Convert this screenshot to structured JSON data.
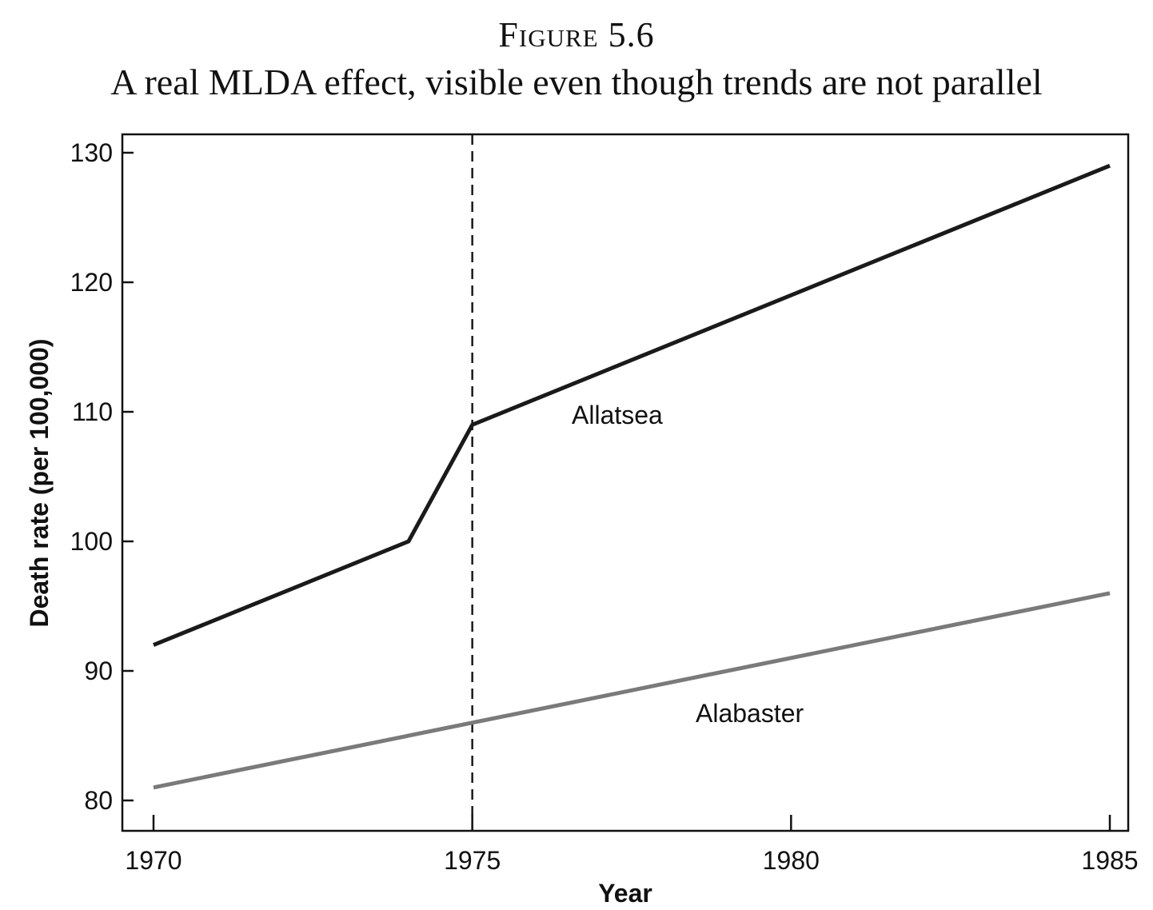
{
  "figure": {
    "number": "Figure 5.6",
    "caption": "A real MLDA effect, visible even though trends are not parallel"
  },
  "chart_data": {
    "type": "line",
    "title": "A real MLDA effect, visible even though trends are not parallel",
    "xlabel": "Year",
    "ylabel": "Death rate (per 100,000)",
    "xlim": [
      1970,
      1985
    ],
    "ylim": [
      80,
      130
    ],
    "x_ticks": [
      1970,
      1975,
      1980,
      1985
    ],
    "y_ticks": [
      80,
      90,
      100,
      110,
      120,
      130
    ],
    "grid": false,
    "legend": "none",
    "series": [
      {
        "name": "Allatsea",
        "color": "#1a1a1a",
        "points": [
          [
            1970,
            92
          ],
          [
            1974,
            100
          ],
          [
            1975,
            109
          ],
          [
            1985,
            129
          ]
        ]
      },
      {
        "name": "Alabaster",
        "color": "#7a7a7a",
        "points": [
          [
            1970,
            81
          ],
          [
            1985,
            96
          ]
        ]
      }
    ],
    "annotations": [
      {
        "type": "vline",
        "x": 1975,
        "style": "dashed",
        "color": "#1a1a1a"
      }
    ]
  }
}
